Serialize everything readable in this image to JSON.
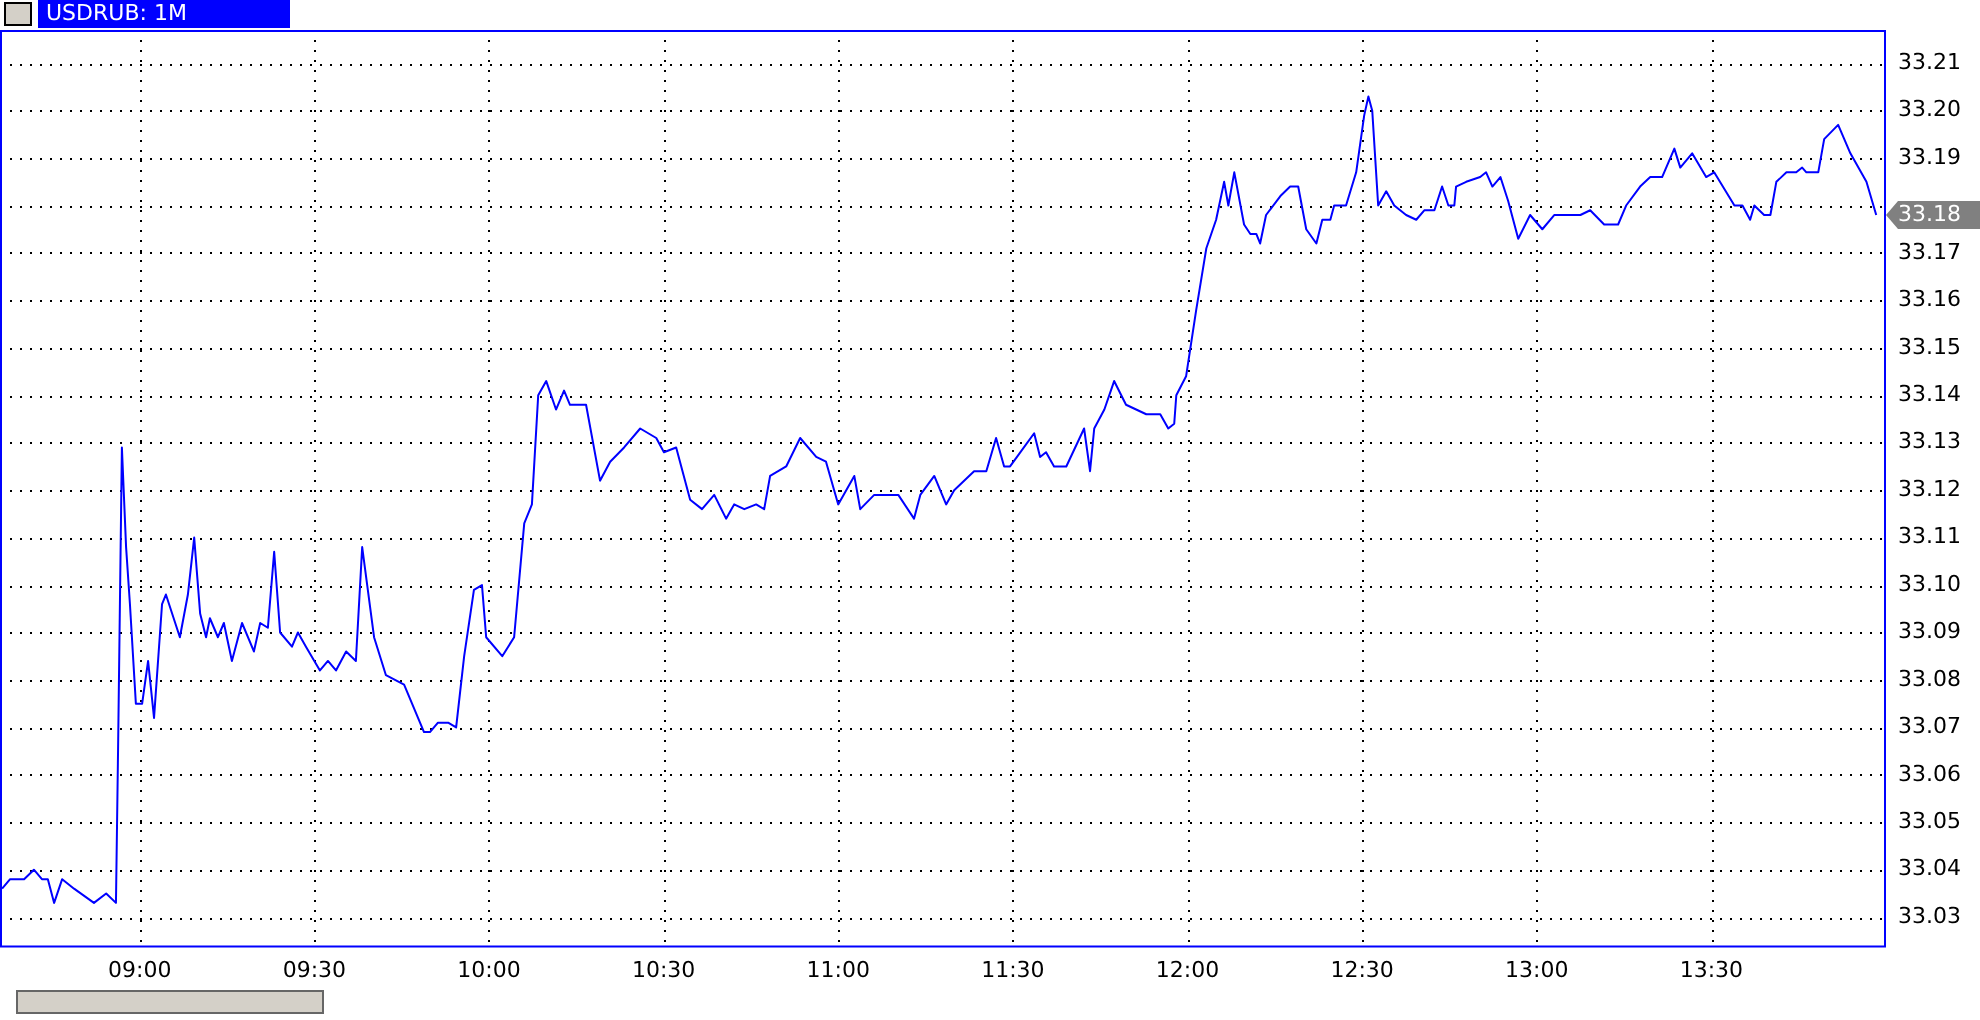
{
  "chart_data": {
    "type": "line",
    "title": "USDRUB: 1M",
    "xlim": [
      8.6,
      14.0
    ],
    "xticks": [
      {
        "value": 9,
        "label": "09:00"
      },
      {
        "value": 9.5,
        "label": "09:30"
      },
      {
        "value": 10,
        "label": "10:00"
      },
      {
        "value": 10.5,
        "label": "10:30"
      },
      {
        "value": 11,
        "label": "11:00"
      },
      {
        "value": 11.5,
        "label": "11:30"
      },
      {
        "value": 12,
        "label": "12:00"
      },
      {
        "value": 12.5,
        "label": "12:30"
      },
      {
        "value": 13,
        "label": "13:00"
      },
      {
        "value": 13.5,
        "label": "13:30"
      }
    ],
    "ylim": [
      33.024,
      33.217
    ],
    "yticks": [
      {
        "value": 33.03,
        "label": "33.03"
      },
      {
        "value": 33.04,
        "label": "33.04"
      },
      {
        "value": 33.05,
        "label": "33.05"
      },
      {
        "value": 33.06,
        "label": "33.06"
      },
      {
        "value": 33.07,
        "label": "33.07"
      },
      {
        "value": 33.08,
        "label": "33.08"
      },
      {
        "value": 33.09,
        "label": "33.09"
      },
      {
        "value": 33.1,
        "label": "33.10"
      },
      {
        "value": 33.11,
        "label": "33.11"
      },
      {
        "value": 33.12,
        "label": "33.12"
      },
      {
        "value": 33.13,
        "label": "33.13"
      },
      {
        "value": 33.14,
        "label": "33.14"
      },
      {
        "value": 33.15,
        "label": "33.15"
      },
      {
        "value": 33.16,
        "label": "33.16"
      },
      {
        "value": 33.17,
        "label": "33.17"
      },
      {
        "value": 33.18,
        "label": null
      },
      {
        "value": 33.19,
        "label": "33.19"
      },
      {
        "value": 33.2,
        "label": "33.20"
      },
      {
        "value": 33.21,
        "label": "33.21"
      }
    ],
    "grid": true,
    "legend": false,
    "marker": "none",
    "line_style": "solid",
    "annotations": [
      "33.18"
    ],
    "series": [
      {
        "color": "#0000ff",
        "x": [
          8.606,
          8.629,
          8.669,
          8.697,
          8.72,
          8.737,
          8.755,
          8.778,
          8.812,
          8.869,
          8.904,
          8.932,
          8.938,
          8.949,
          8.961,
          8.972,
          8.989,
          9.007,
          9.024,
          9.041,
          9.064,
          9.075,
          9.115,
          9.138,
          9.156,
          9.173,
          9.19,
          9.201,
          9.224,
          9.241,
          9.264,
          9.293,
          9.327,
          9.345,
          9.367,
          9.385,
          9.402,
          9.436,
          9.453,
          9.476,
          9.516,
          9.539,
          9.562,
          9.591,
          9.619,
          9.637,
          9.671,
          9.705,
          9.757,
          9.814,
          9.831,
          9.854,
          9.883,
          9.906,
          9.929,
          9.957,
          9.98,
          9.992,
          10.038,
          10.072,
          10.101,
          10.123,
          10.141,
          10.164,
          10.192,
          10.215,
          10.232,
          10.278,
          10.318,
          10.347,
          10.387,
          10.433,
          10.479,
          10.501,
          10.536,
          10.576,
          10.61,
          10.645,
          10.679,
          10.702,
          10.731,
          10.765,
          10.788,
          10.805,
          10.851,
          10.891,
          10.937,
          10.965,
          11.0,
          11.046,
          11.063,
          11.103,
          11.172,
          11.217,
          11.235,
          11.275,
          11.309,
          11.332,
          11.389,
          11.424,
          11.452,
          11.475,
          11.492,
          11.561,
          11.578,
          11.595,
          11.618,
          11.653,
          11.704,
          11.721,
          11.733,
          11.762,
          11.79,
          11.824,
          11.882,
          11.922,
          11.945,
          11.962,
          11.968,
          11.996,
          12.025,
          12.054,
          12.082,
          12.105,
          12.117,
          12.134,
          12.162,
          12.18,
          12.197,
          12.208,
          12.225,
          12.266,
          12.294,
          12.317,
          12.34,
          12.369,
          12.386,
          12.409,
          12.42,
          12.454,
          12.483,
          12.506,
          12.518,
          12.529,
          12.546,
          12.569,
          12.592,
          12.626,
          12.655,
          12.678,
          12.707,
          12.729,
          12.747,
          12.764,
          12.769,
          12.798,
          12.838,
          12.855,
          12.873,
          12.896,
          12.918,
          12.947,
          12.981,
          13.016,
          13.05,
          13.084,
          13.125,
          13.153,
          13.193,
          13.233,
          13.256,
          13.296,
          13.325,
          13.359,
          13.394,
          13.411,
          13.445,
          13.485,
          13.508,
          13.566,
          13.589,
          13.611,
          13.623,
          13.651,
          13.669,
          13.686,
          13.715,
          13.743,
          13.76,
          13.772,
          13.806,
          13.823,
          13.863,
          13.898,
          13.944,
          13.972
        ],
        "values": [
          33.036,
          33.038,
          33.038,
          33.04,
          33.038,
          33.038,
          33.033,
          33.038,
          33.036,
          33.033,
          33.035,
          33.033,
          33.065,
          33.129,
          33.108,
          33.096,
          33.075,
          33.075,
          33.084,
          33.072,
          33.096,
          33.098,
          33.089,
          33.098,
          33.11,
          33.094,
          33.089,
          33.093,
          33.089,
          33.092,
          33.084,
          33.092,
          33.086,
          33.092,
          33.091,
          33.107,
          33.09,
          33.087,
          33.09,
          33.087,
          33.082,
          33.084,
          33.082,
          33.086,
          33.084,
          33.108,
          33.089,
          33.081,
          33.079,
          33.069,
          33.069,
          33.071,
          33.071,
          33.07,
          33.085,
          33.099,
          33.1,
          33.089,
          33.085,
          33.089,
          33.113,
          33.117,
          33.14,
          33.143,
          33.137,
          33.141,
          33.138,
          33.138,
          33.122,
          33.126,
          33.129,
          33.133,
          33.131,
          33.128,
          33.129,
          33.118,
          33.116,
          33.119,
          33.114,
          33.117,
          33.116,
          33.117,
          33.116,
          33.123,
          33.125,
          33.131,
          33.127,
          33.126,
          33.117,
          33.123,
          33.116,
          33.119,
          33.119,
          33.114,
          33.119,
          33.123,
          33.117,
          33.12,
          33.124,
          33.124,
          33.131,
          33.125,
          33.125,
          33.132,
          33.127,
          33.128,
          33.125,
          33.125,
          33.133,
          33.124,
          33.133,
          33.137,
          33.143,
          33.138,
          33.136,
          33.136,
          33.133,
          33.134,
          33.14,
          33.144,
          33.158,
          33.171,
          33.177,
          33.185,
          33.18,
          33.187,
          33.176,
          33.174,
          33.174,
          33.172,
          33.178,
          33.182,
          33.184,
          33.184,
          33.175,
          33.172,
          33.177,
          33.177,
          33.18,
          33.18,
          33.187,
          33.199,
          33.203,
          33.2,
          33.18,
          33.183,
          33.18,
          33.178,
          33.177,
          33.179,
          33.179,
          33.184,
          33.18,
          33.18,
          33.184,
          33.185,
          33.186,
          33.187,
          33.184,
          33.186,
          33.181,
          33.173,
          33.178,
          33.175,
          33.178,
          33.178,
          33.178,
          33.179,
          33.176,
          33.176,
          33.18,
          33.184,
          33.186,
          33.186,
          33.192,
          33.188,
          33.191,
          33.186,
          33.187,
          33.18,
          33.18,
          33.177,
          33.18,
          33.178,
          33.178,
          33.185,
          33.187,
          33.187,
          33.188,
          33.187,
          33.187,
          33.194,
          33.197,
          33.191,
          33.185,
          33.178
        ]
      }
    ]
  }
}
